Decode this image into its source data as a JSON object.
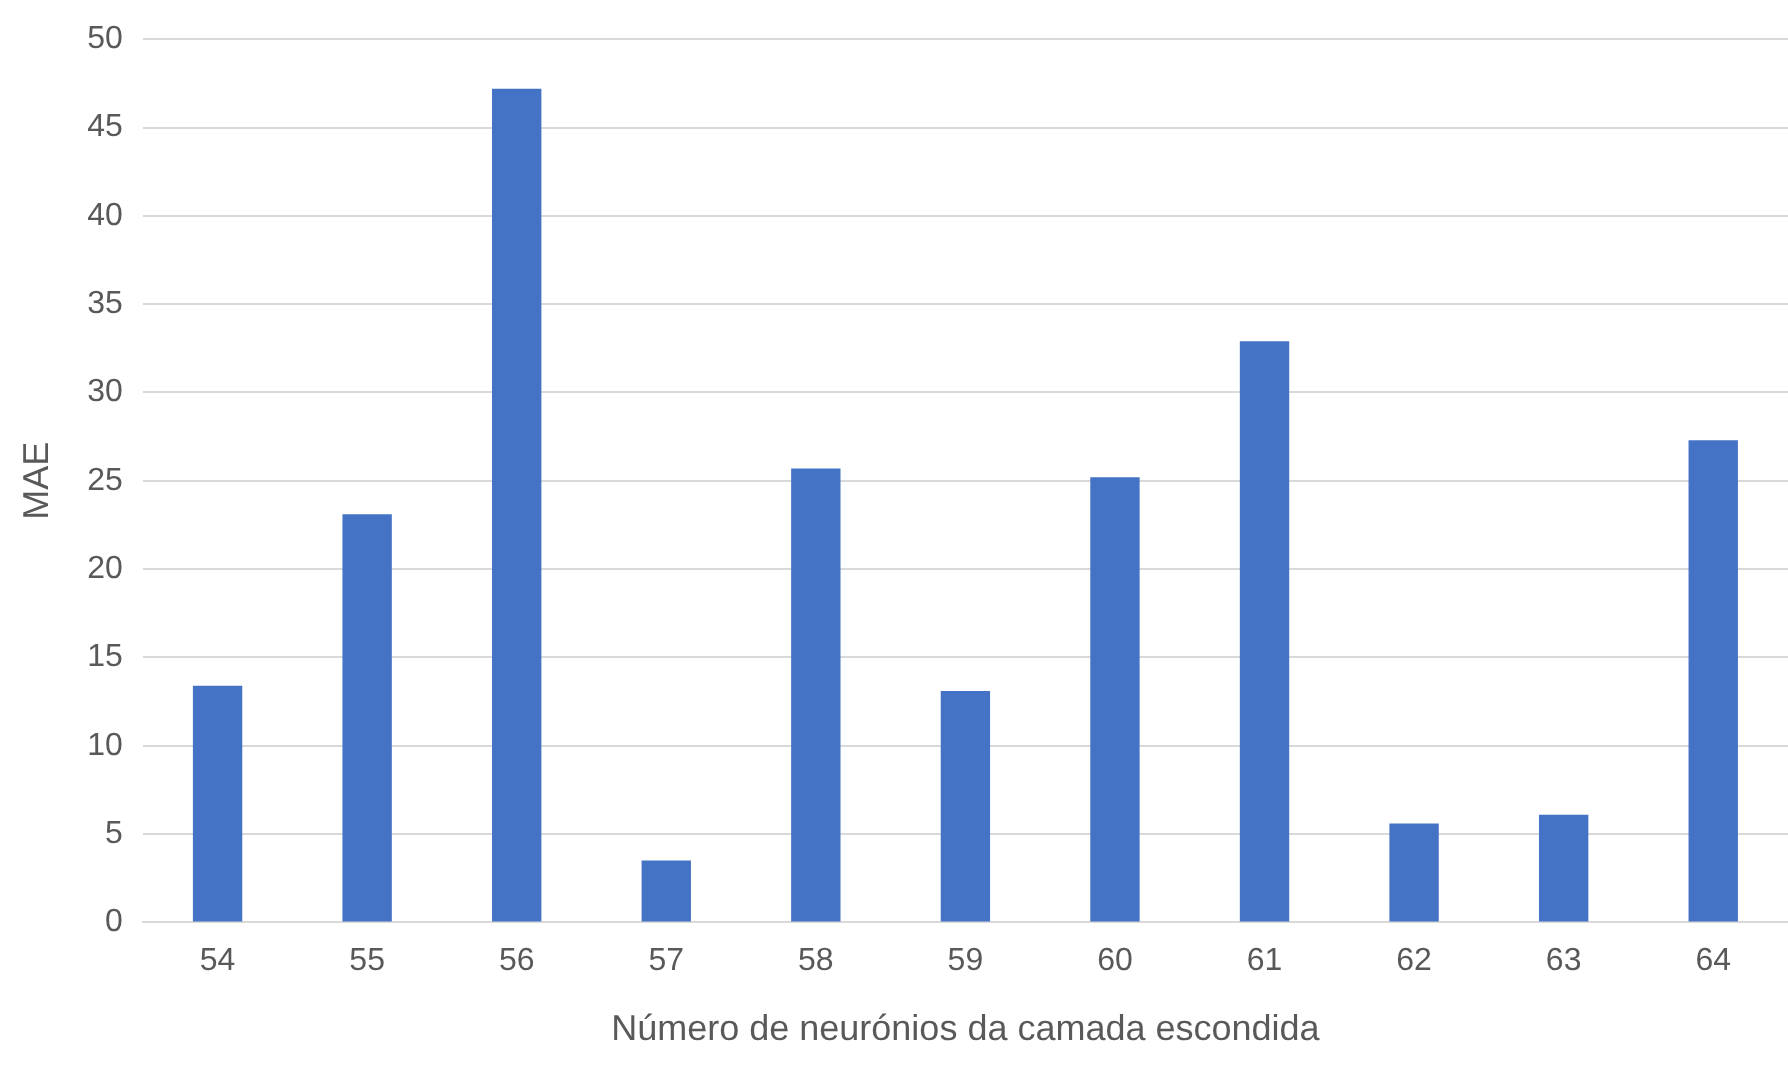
{
  "chart_data": {
    "type": "bar",
    "xlabel": "Número de neurónios da camada escondida",
    "ylabel": "MAE",
    "categories": [
      "54",
      "55",
      "56",
      "57",
      "58",
      "59",
      "60",
      "61",
      "62",
      "63",
      "64"
    ],
    "values": [
      13.4,
      23.1,
      47.2,
      3.5,
      25.7,
      13.1,
      25.2,
      32.9,
      5.6,
      6.1,
      27.3
    ],
    "color": "#4472c4",
    "ylim": [
      0,
      50
    ],
    "yticks": [
      0,
      5,
      10,
      15,
      20,
      25,
      30,
      35,
      40,
      45,
      50
    ],
    "grid": "y",
    "legend": false
  }
}
